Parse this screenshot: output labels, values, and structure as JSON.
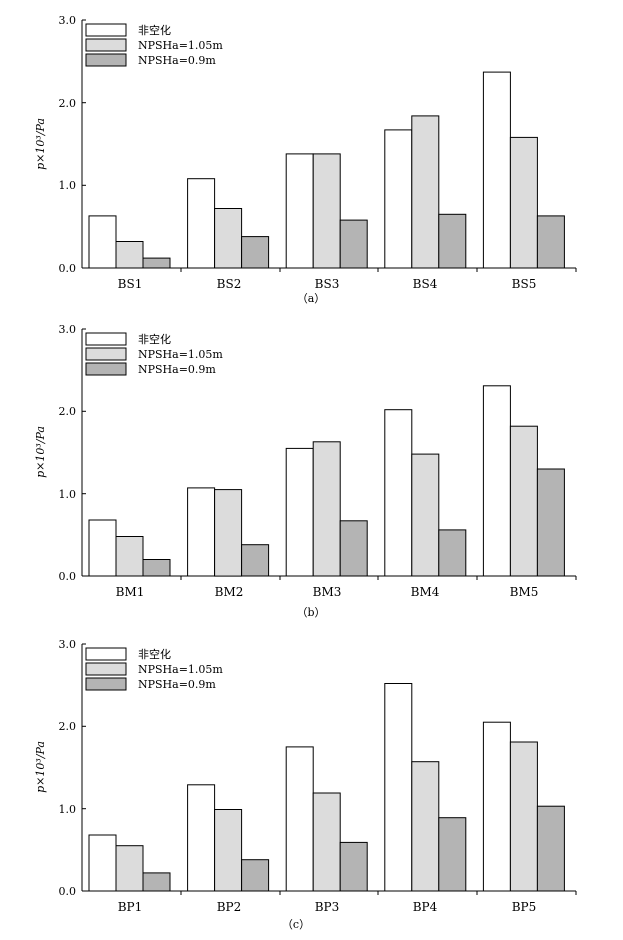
{
  "colors": {
    "series_0": "#ffffff",
    "series_1": "#dcdcdc",
    "series_2": "#b4b4b4",
    "stroke": "#000000"
  },
  "chart_data": [
    {
      "type": "bar",
      "caption": "（a）",
      "ylabel": "p×10³/Pa",
      "ylim": [
        0,
        3.0
      ],
      "yticks": [
        "0.0",
        "1.0",
        "2.0",
        "3.0"
      ],
      "legend_position": "top-left",
      "categories": [
        "BS1",
        "BS2",
        "BS3",
        "BS4",
        "BS5"
      ],
      "series": [
        {
          "name": "非空化",
          "values": [
            0.63,
            1.08,
            1.38,
            1.67,
            2.37
          ]
        },
        {
          "name": "NPSHa=1.05m",
          "values": [
            0.32,
            0.72,
            1.38,
            1.84,
            1.58
          ]
        },
        {
          "name": "NPSHa=0.9m",
          "values": [
            0.12,
            0.38,
            0.58,
            0.65,
            0.63
          ]
        }
      ]
    },
    {
      "type": "bar",
      "caption": "（b）",
      "ylabel": "p×10³/Pa",
      "ylim": [
        0,
        3.0
      ],
      "yticks": [
        "0.0",
        "1.0",
        "2.0",
        "3.0"
      ],
      "legend_position": "top-left",
      "categories": [
        "BM1",
        "BM2",
        "BM3",
        "BM4",
        "BM5"
      ],
      "series": [
        {
          "name": "非空化",
          "values": [
            0.68,
            1.07,
            1.55,
            2.02,
            2.31
          ]
        },
        {
          "name": "NPSHa=1.05m",
          "values": [
            0.48,
            1.05,
            1.63,
            1.48,
            1.82
          ]
        },
        {
          "name": "NPSHa=0.9m",
          "values": [
            0.2,
            0.38,
            0.67,
            0.56,
            1.3
          ]
        }
      ]
    },
    {
      "type": "bar",
      "caption": "（c）",
      "ylabel": "p×10³/Pa",
      "ylim": [
        0,
        3.0
      ],
      "yticks": [
        "0.0",
        "1.0",
        "2.0",
        "3.0"
      ],
      "legend_position": "top-left",
      "categories": [
        "BP1",
        "BP2",
        "BP3",
        "BP4",
        "BP5"
      ],
      "series": [
        {
          "name": "非空化",
          "values": [
            0.68,
            1.29,
            1.75,
            2.52,
            2.05
          ]
        },
        {
          "name": "NPSHa=1.05m",
          "values": [
            0.55,
            0.99,
            1.19,
            1.57,
            1.81
          ]
        },
        {
          "name": "NPSHa=0.9m",
          "values": [
            0.22,
            0.38,
            0.59,
            0.89,
            1.03
          ]
        }
      ]
    }
  ]
}
